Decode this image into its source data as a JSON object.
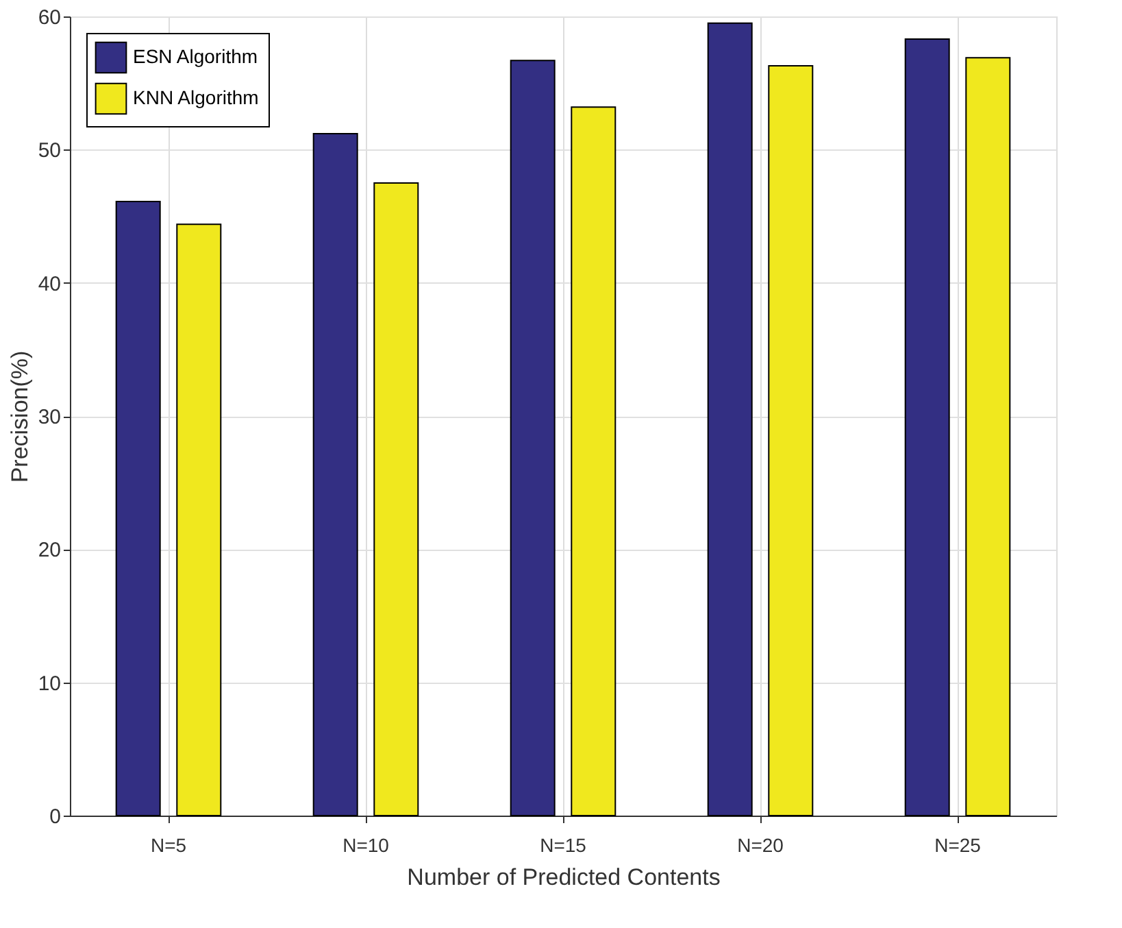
{
  "chart_data": {
    "type": "bar",
    "xlabel": "Number of Predicted Contents",
    "ylabel": "Precision(%)",
    "categories": [
      "N=5",
      "N=10",
      "N=15",
      "N=20",
      "N=25"
    ],
    "series": [
      {
        "name": "ESN Algorithm",
        "color": "#332f83",
        "values": [
          46.1,
          51.2,
          56.7,
          59.5,
          58.3
        ]
      },
      {
        "name": "KNN Algorithm",
        "color": "#f0e81e",
        "values": [
          44.4,
          47.5,
          53.2,
          56.3,
          56.9
        ]
      }
    ],
    "ylim": [
      0,
      60
    ],
    "yticks": [
      0,
      10,
      20,
      30,
      40,
      50,
      60
    ],
    "grid": true,
    "legend": "top left"
  }
}
